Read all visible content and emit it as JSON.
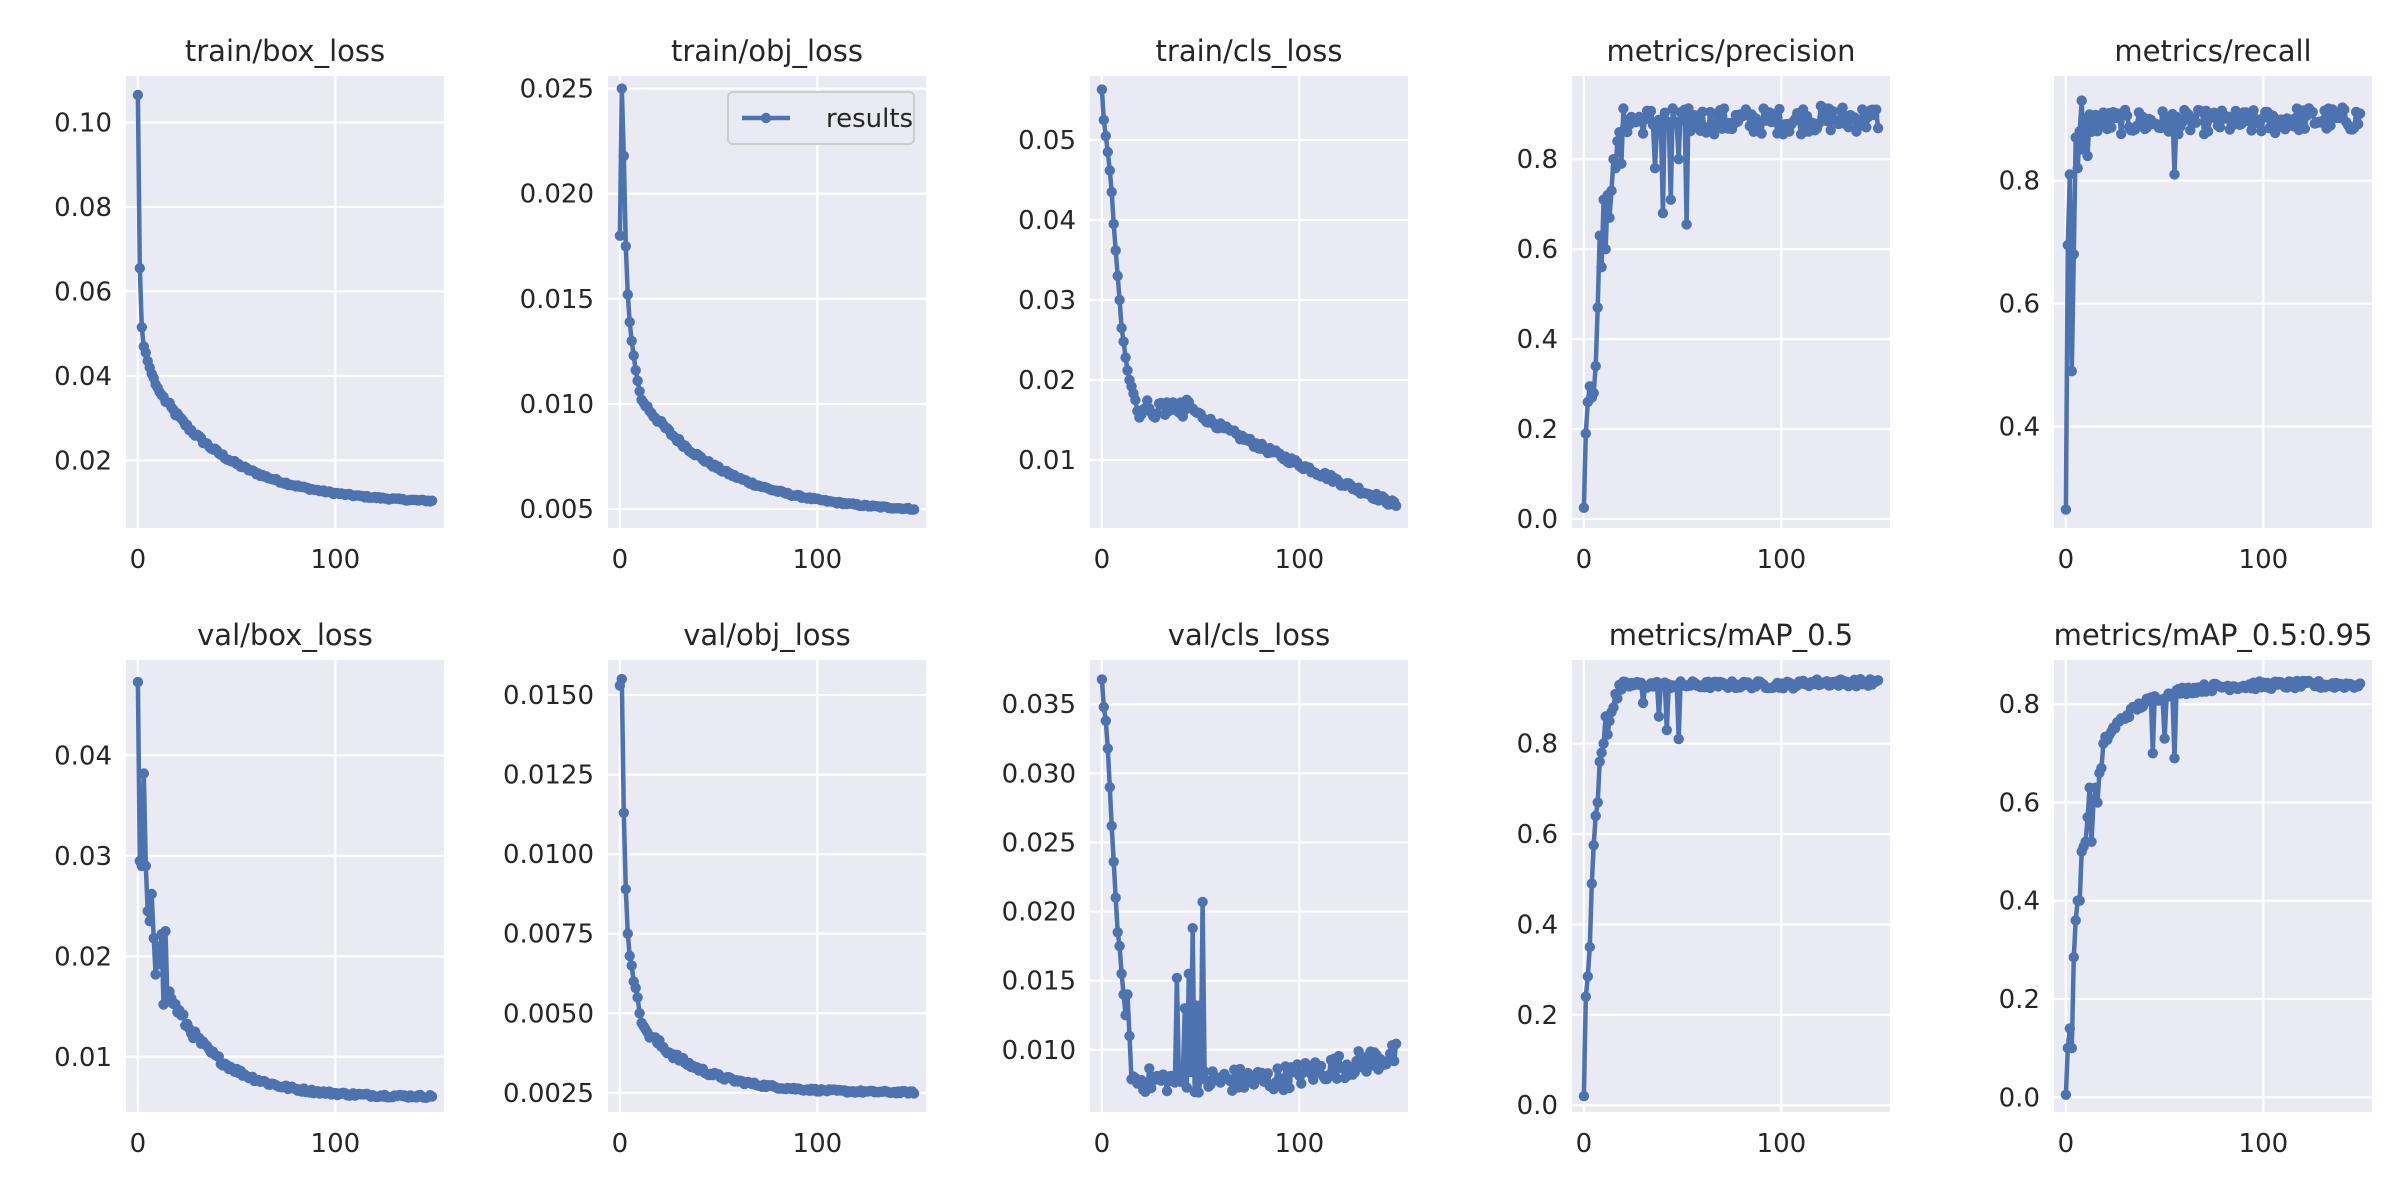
{
  "figure": {
    "background": "#ffffff",
    "axes_face": "#eaeaf2",
    "grid_color": "#ffffff",
    "series_color": "#4c72b0",
    "legend_label": "results",
    "legend_location": "upper-right"
  },
  "chart_data": [
    {
      "type": "line",
      "title": "train/box_loss",
      "xlim": [
        -6,
        155
      ],
      "ylim": [
        0.004,
        0.111
      ],
      "xticks": [
        0,
        100
      ],
      "xtick_labels": [
        "0",
        "100"
      ],
      "yticks": [
        0.02,
        0.04,
        0.06,
        0.08,
        0.1
      ],
      "ytick_labels": [
        "0.02",
        "0.04",
        "0.06",
        "0.08",
        "0.10"
      ],
      "gen": {
        "kind": "decay",
        "start": [
          0.1065,
          0.0655,
          0.0515,
          0.047,
          0.0455,
          0.0435,
          0.042,
          0.0405,
          0.0395,
          0.038,
          0.0372,
          0.0362,
          0.0355
        ],
        "end": 0.0097,
        "tau": 38,
        "noise": 0.0006
      }
    },
    {
      "type": "line",
      "title": "train/obj_loss",
      "xlim": [
        -6,
        155
      ],
      "ylim": [
        0.0041,
        0.0256
      ],
      "xticks": [
        0,
        100
      ],
      "xtick_labels": [
        "0",
        "100"
      ],
      "yticks": [
        0.005,
        0.01,
        0.015,
        0.02,
        0.025
      ],
      "ytick_labels": [
        "0.005",
        "0.010",
        "0.015",
        "0.020",
        "0.025"
      ],
      "legend": true,
      "gen": {
        "kind": "decay",
        "start": [
          0.018,
          0.025,
          0.0218,
          0.0175,
          0.0152,
          0.0139,
          0.013,
          0.0123,
          0.0116,
          0.0111,
          0.0106,
          0.0102
        ],
        "end": 0.0048,
        "tau": 42,
        "noise": 0.00012
      }
    },
    {
      "type": "line",
      "title": "train/cls_loss",
      "xlim": [
        -6,
        155
      ],
      "ylim": [
        0.0015,
        0.058
      ],
      "xticks": [
        0,
        100
      ],
      "xtick_labels": [
        "0",
        "100"
      ],
      "yticks": [
        0.01,
        0.02,
        0.03,
        0.04,
        0.05
      ],
      "ytick_labels": [
        "0.01",
        "0.02",
        "0.03",
        "0.04",
        "0.05"
      ],
      "gen": {
        "kind": "cls",
        "start": [
          0.0563,
          0.0525,
          0.0505,
          0.0485,
          0.0462,
          0.0435,
          0.0395,
          0.0362,
          0.033,
          0.03,
          0.0265,
          0.0248,
          0.0228,
          0.0212,
          0.02,
          0.0192,
          0.0183,
          0.0175
        ],
        "end": 0.0044,
        "noise": 0.0006
      }
    },
    {
      "type": "line",
      "title": "metrics/precision",
      "xlim": [
        -6,
        155
      ],
      "ylim": [
        -0.02,
        0.985
      ],
      "xticks": [
        0,
        100
      ],
      "xtick_labels": [
        "0",
        "100"
      ],
      "yticks": [
        0.0,
        0.2,
        0.4,
        0.6,
        0.8
      ],
      "ytick_labels": [
        "0.0",
        "0.2",
        "0.4",
        "0.6",
        "0.8"
      ],
      "gen": {
        "kind": "rise",
        "start": [
          0.025,
          0.19,
          0.26,
          0.295,
          0.27,
          0.28,
          0.34,
          0.47,
          0.63,
          0.56,
          0.71,
          0.6,
          0.72,
          0.67,
          0.73,
          0.8,
          0.78,
          0.84,
          0.86,
          0.79
        ],
        "plateau": 0.885,
        "noise": 0.03,
        "dips": [
          [
            40,
            0.68
          ],
          [
            44,
            0.71
          ],
          [
            52,
            0.655
          ],
          [
            36,
            0.78
          ],
          [
            48,
            0.8
          ]
        ]
      }
    },
    {
      "type": "line",
      "title": "metrics/recall",
      "xlim": [
        -6,
        155
      ],
      "ylim": [
        0.235,
        0.97
      ],
      "xticks": [
        0,
        100
      ],
      "xtick_labels": [
        "0",
        "100"
      ],
      "yticks": [
        0.4,
        0.6,
        0.8
      ],
      "ytick_labels": [
        "0.4",
        "0.6",
        "0.8"
      ],
      "gen": {
        "kind": "rise",
        "start": [
          0.265,
          0.695,
          0.81,
          0.49,
          0.68,
          0.87,
          0.82,
          0.88,
          0.93,
          0.85,
          0.9,
          0.84
        ],
        "plateau": 0.895,
        "noise": 0.02,
        "dips": [
          [
            55,
            0.81
          ]
        ]
      }
    },
    {
      "type": "line",
      "title": "val/box_loss",
      "xlim": [
        -6,
        155
      ],
      "ylim": [
        0.0045,
        0.0495
      ],
      "xticks": [
        0,
        100
      ],
      "xtick_labels": [
        "0",
        "100"
      ],
      "yticks": [
        0.01,
        0.02,
        0.03,
        0.04
      ],
      "ytick_labels": [
        "0.01",
        "0.02",
        "0.03",
        "0.04"
      ],
      "gen": {
        "kind": "decay",
        "start": [
          0.0473,
          0.0295,
          0.029,
          0.0382,
          0.029,
          0.0245,
          0.0235,
          0.0262,
          0.0218,
          0.0182,
          0.021,
          0.0192,
          0.0222,
          0.0152,
          0.0225,
          0.0155,
          0.0165,
          0.0158
        ],
        "end": 0.006,
        "tau": 25,
        "noise": 0.0005
      }
    },
    {
      "type": "line",
      "title": "val/obj_loss",
      "xlim": [
        -6,
        155
      ],
      "ylim": [
        0.0019,
        0.0161
      ],
      "xticks": [
        0,
        100
      ],
      "xtick_labels": [
        "0",
        "100"
      ],
      "yticks": [
        0.0025,
        0.005,
        0.0075,
        0.01,
        0.0125,
        0.015
      ],
      "ytick_labels": [
        "0.0025",
        "0.0050",
        "0.0075",
        "0.0100",
        "0.0125",
        "0.0150"
      ],
      "gen": {
        "kind": "decay",
        "start": [
          0.0153,
          0.0155,
          0.0113,
          0.0089,
          0.0075,
          0.0068,
          0.0065,
          0.006,
          0.0058,
          0.0055,
          0.005,
          0.0047,
          0.0046,
          0.0045,
          0.0044
        ],
        "end": 0.0025,
        "tau": 28,
        "noise": 0.00012
      }
    },
    {
      "type": "line",
      "title": "val/cls_loss",
      "xlim": [
        -6,
        155
      ],
      "ylim": [
        0.0055,
        0.0382
      ],
      "xticks": [
        0,
        100
      ],
      "xtick_labels": [
        "0",
        "100"
      ],
      "yticks": [
        0.01,
        0.015,
        0.02,
        0.025,
        0.03,
        0.035
      ],
      "ytick_labels": [
        "0.010",
        "0.015",
        "0.020",
        "0.025",
        "0.030",
        "0.035"
      ],
      "gen": {
        "kind": "valcls",
        "start": [
          0.0368,
          0.0348,
          0.0338,
          0.0318,
          0.029,
          0.0262,
          0.0236,
          0.021,
          0.0185,
          0.0175,
          0.0155,
          0.014,
          0.0125,
          0.014,
          0.011
        ],
        "base": 0.0085,
        "noise": 0.0009,
        "spikes": [
          [
            38,
            0.0152
          ],
          [
            42,
            0.013
          ],
          [
            44,
            0.0155
          ],
          [
            46,
            0.0188
          ],
          [
            48,
            0.0132
          ],
          [
            51,
            0.0207
          ]
        ]
      }
    },
    {
      "type": "line",
      "title": "metrics/mAP_0.5",
      "xlim": [
        -6,
        155
      ],
      "ylim": [
        -0.015,
        0.985
      ],
      "xticks": [
        0,
        100
      ],
      "xtick_labels": [
        "0",
        "100"
      ],
      "yticks": [
        0.0,
        0.2,
        0.4,
        0.6,
        0.8
      ],
      "ytick_labels": [
        "0.0",
        "0.2",
        "0.4",
        "0.6",
        "0.8"
      ],
      "gen": {
        "kind": "rise",
        "start": [
          0.02,
          0.24,
          0.285,
          0.35,
          0.49,
          0.575,
          0.64,
          0.67,
          0.76,
          0.78,
          0.8,
          0.86,
          0.82,
          0.85,
          0.87,
          0.88,
          0.91,
          0.9,
          0.93,
          0.92
        ],
        "plateau": 0.93,
        "noise": 0.008,
        "dips": [
          [
            38,
            0.86
          ],
          [
            42,
            0.83
          ],
          [
            48,
            0.81
          ],
          [
            30,
            0.89
          ]
        ]
      }
    },
    {
      "type": "line",
      "title": "metrics/mAP_0.5:0.95",
      "xlim": [
        -6,
        155
      ],
      "ylim": [
        -0.03,
        0.89
      ],
      "xticks": [
        0,
        100
      ],
      "xtick_labels": [
        "0",
        "100"
      ],
      "yticks": [
        0.0,
        0.2,
        0.4,
        0.6,
        0.8
      ],
      "ytick_labels": [
        "0.0",
        "0.2",
        "0.4",
        "0.6",
        "0.8"
      ],
      "gen": {
        "kind": "map95",
        "start": [
          0.005,
          0.1,
          0.14,
          0.1,
          0.285,
          0.36,
          0.4,
          0.4,
          0.5,
          0.51,
          0.52,
          0.57,
          0.63,
          0.52,
          0.6,
          0.63,
          0.6,
          0.66,
          0.67,
          0.72
        ],
        "plateau": 0.84,
        "noise": 0.008,
        "dips": [
          [
            55,
            0.69
          ],
          [
            50,
            0.73
          ],
          [
            44,
            0.7
          ]
        ]
      }
    }
  ]
}
